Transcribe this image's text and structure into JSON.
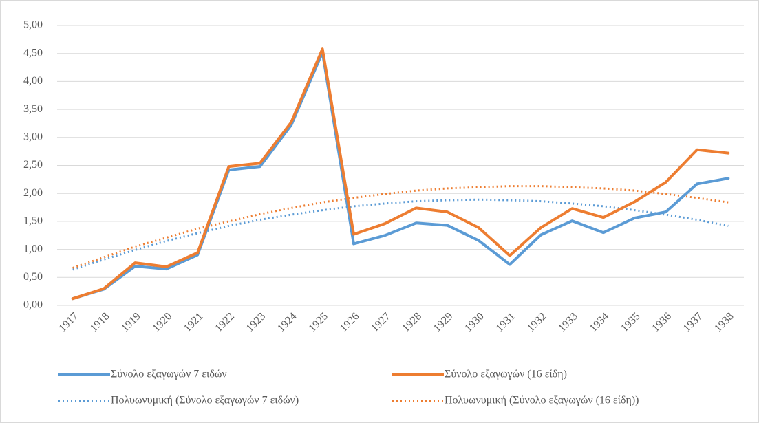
{
  "chart_data": {
    "type": "line",
    "categories": [
      "1917",
      "1918",
      "1919",
      "1920",
      "1921",
      "1922",
      "1923",
      "1924",
      "1925",
      "1926",
      "1927",
      "1928",
      "1929",
      "1930",
      "1931",
      "1932",
      "1933",
      "1934",
      "1935",
      "1936",
      "1937",
      "1938"
    ],
    "ylim": [
      0,
      5
    ],
    "yticks": [
      {
        "value": 0,
        "label": "0,00"
      },
      {
        "value": 0.5,
        "label": "0,50"
      },
      {
        "value": 1,
        "label": "1,00"
      },
      {
        "value": 1.5,
        "label": "1,50"
      },
      {
        "value": 2,
        "label": "2,00"
      },
      {
        "value": 2.5,
        "label": "2,50"
      },
      {
        "value": 3,
        "label": "3,00"
      },
      {
        "value": 3.5,
        "label": "3,50"
      },
      {
        "value": 4,
        "label": "4,00"
      },
      {
        "value": 4.5,
        "label": "4,50"
      },
      {
        "value": 5,
        "label": "5,00"
      }
    ],
    "grid": true,
    "legend": "bottom",
    "series": [
      {
        "name": "Σύνολο εξαγωγών 7 ειδών",
        "color": "#5b9bd5",
        "dash": "solid",
        "values": [
          0.12,
          0.29,
          0.7,
          0.65,
          0.9,
          2.42,
          2.48,
          3.22,
          4.52,
          1.1,
          1.25,
          1.47,
          1.43,
          1.16,
          0.73,
          1.26,
          1.51,
          1.3,
          1.56,
          1.67,
          2.17,
          2.27
        ]
      },
      {
        "name": "Σύνολο εξαγωγών (16 είδη)",
        "color": "#ed7d31",
        "dash": "solid",
        "values": [
          0.12,
          0.3,
          0.76,
          0.69,
          0.94,
          2.48,
          2.54,
          3.27,
          4.58,
          1.27,
          1.46,
          1.74,
          1.67,
          1.39,
          0.89,
          1.39,
          1.73,
          1.57,
          1.85,
          2.2,
          2.78,
          2.72
        ]
      },
      {
        "name": "Πολυωνυμική (Σύνολο εξαγωγών 7 ειδών)",
        "color": "#5b9bd5",
        "dash": "dotted",
        "values": [
          0.64,
          0.82,
          0.99,
          1.15,
          1.29,
          1.42,
          1.53,
          1.62,
          1.7,
          1.77,
          1.82,
          1.86,
          1.88,
          1.89,
          1.88,
          1.86,
          1.82,
          1.77,
          1.7,
          1.62,
          1.53,
          1.42
        ]
      },
      {
        "name": "Πολυωνυμική (Σύνολο εξαγωγών (16 είδη))",
        "color": "#ed7d31",
        "dash": "dotted",
        "values": [
          0.67,
          0.86,
          1.05,
          1.21,
          1.37,
          1.5,
          1.63,
          1.74,
          1.84,
          1.92,
          1.99,
          2.05,
          2.09,
          2.11,
          2.13,
          2.13,
          2.11,
          2.09,
          2.05,
          1.99,
          1.92,
          1.84
        ]
      }
    ]
  }
}
